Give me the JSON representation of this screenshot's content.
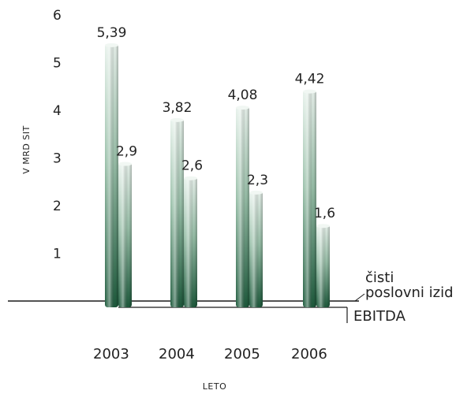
{
  "chart_data": {
    "type": "bar",
    "categories": [
      "2003",
      "2004",
      "2005",
      "2006"
    ],
    "series": [
      {
        "name": "EBITDA",
        "values": [
          5.39,
          3.82,
          4.08,
          4.42
        ],
        "labels": [
          "5,39",
          "3,82",
          "4,08",
          "4,42"
        ]
      },
      {
        "name": "čisti poslovni izid",
        "values": [
          2.9,
          2.6,
          2.3,
          1.6
        ],
        "labels": [
          "2,9",
          "2,6",
          "2,3",
          "1,6"
        ]
      }
    ],
    "yticks": [
      "1",
      "2",
      "3",
      "4",
      "5",
      "6"
    ],
    "ylim": [
      0,
      6
    ],
    "ylabel": "V MRD SIT",
    "xlabel": "LETO",
    "legend": {
      "line1": "čisti",
      "line2": "poslovni izid",
      "line3": "EBITDA"
    },
    "colors": {
      "bar_dark": "#1f5a3e",
      "bar_mid": "#5f9a7c",
      "bar_light": "#e6f1ea",
      "axis": "#1a1a1a"
    }
  }
}
